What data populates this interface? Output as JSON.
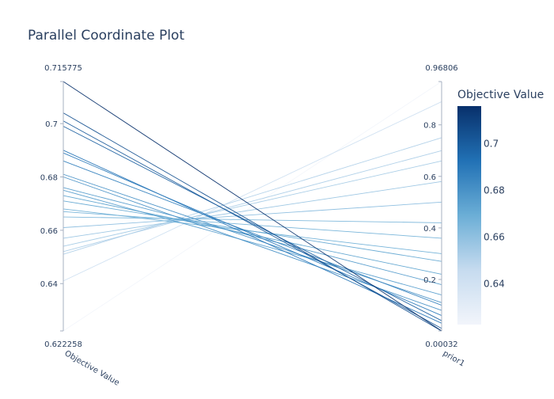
{
  "chart_data": {
    "type": "parallel_coordinates",
    "title": "Parallel Coordinate Plot",
    "dimensions": [
      {
        "label": "Objective Value",
        "range": [
          0.622258,
          0.715775
        ],
        "min_label": "0.622258",
        "max_label": "0.715775",
        "ticks": [
          0.64,
          0.66,
          0.68,
          0.7
        ],
        "tick_labels": [
          "0.64",
          "0.66",
          "0.68",
          "0.7"
        ]
      },
      {
        "label": "prior1",
        "range": [
          0.00032,
          0.96806
        ],
        "min_label": "0.00032",
        "max_label": "0.96806",
        "ticks": [
          0.2,
          0.4,
          0.6,
          0.8
        ],
        "tick_labels": [
          "0.2",
          "0.4",
          "0.6",
          "0.8"
        ]
      }
    ],
    "colorbar": {
      "title": "Objective Value",
      "colorscale": [
        "#f2f5fb",
        "#c6dbef",
        "#6baed6",
        "#2171b5",
        "#08306b"
      ],
      "ticks": [
        0.64,
        0.66,
        0.68,
        0.7
      ],
      "tick_labels": [
        "0.64",
        "0.66",
        "0.68",
        "0.7"
      ]
    },
    "lines": [
      {
        "objective": 0.715775,
        "prior1": 0.00032
      },
      {
        "objective": 0.704,
        "prior1": 0.0
      },
      {
        "objective": 0.701,
        "prior1": 0.01
      },
      {
        "objective": 0.699,
        "prior1": 0.04
      },
      {
        "objective": 0.69,
        "prior1": 0.03
      },
      {
        "objective": 0.689,
        "prior1": 0.06
      },
      {
        "objective": 0.686,
        "prior1": 0.1
      },
      {
        "objective": 0.681,
        "prior1": 0.11
      },
      {
        "objective": 0.68,
        "prior1": 0.08
      },
      {
        "objective": 0.676,
        "prior1": 0.18
      },
      {
        "objective": 0.675,
        "prior1": 0.14
      },
      {
        "objective": 0.673,
        "prior1": 0.22
      },
      {
        "objective": 0.671,
        "prior1": 0.27
      },
      {
        "objective": 0.668,
        "prior1": 0.3
      },
      {
        "objective": 0.667,
        "prior1": 0.36
      },
      {
        "objective": 0.665,
        "prior1": 0.42
      },
      {
        "objective": 0.661,
        "prior1": 0.5
      },
      {
        "objective": 0.657,
        "prior1": 0.58
      },
      {
        "objective": 0.654,
        "prior1": 0.66
      },
      {
        "objective": 0.652,
        "prior1": 0.7
      },
      {
        "objective": 0.651,
        "prior1": 0.75
      },
      {
        "objective": 0.641,
        "prior1": 0.89
      },
      {
        "objective": 0.622258,
        "prior1": 0.96806
      }
    ]
  }
}
